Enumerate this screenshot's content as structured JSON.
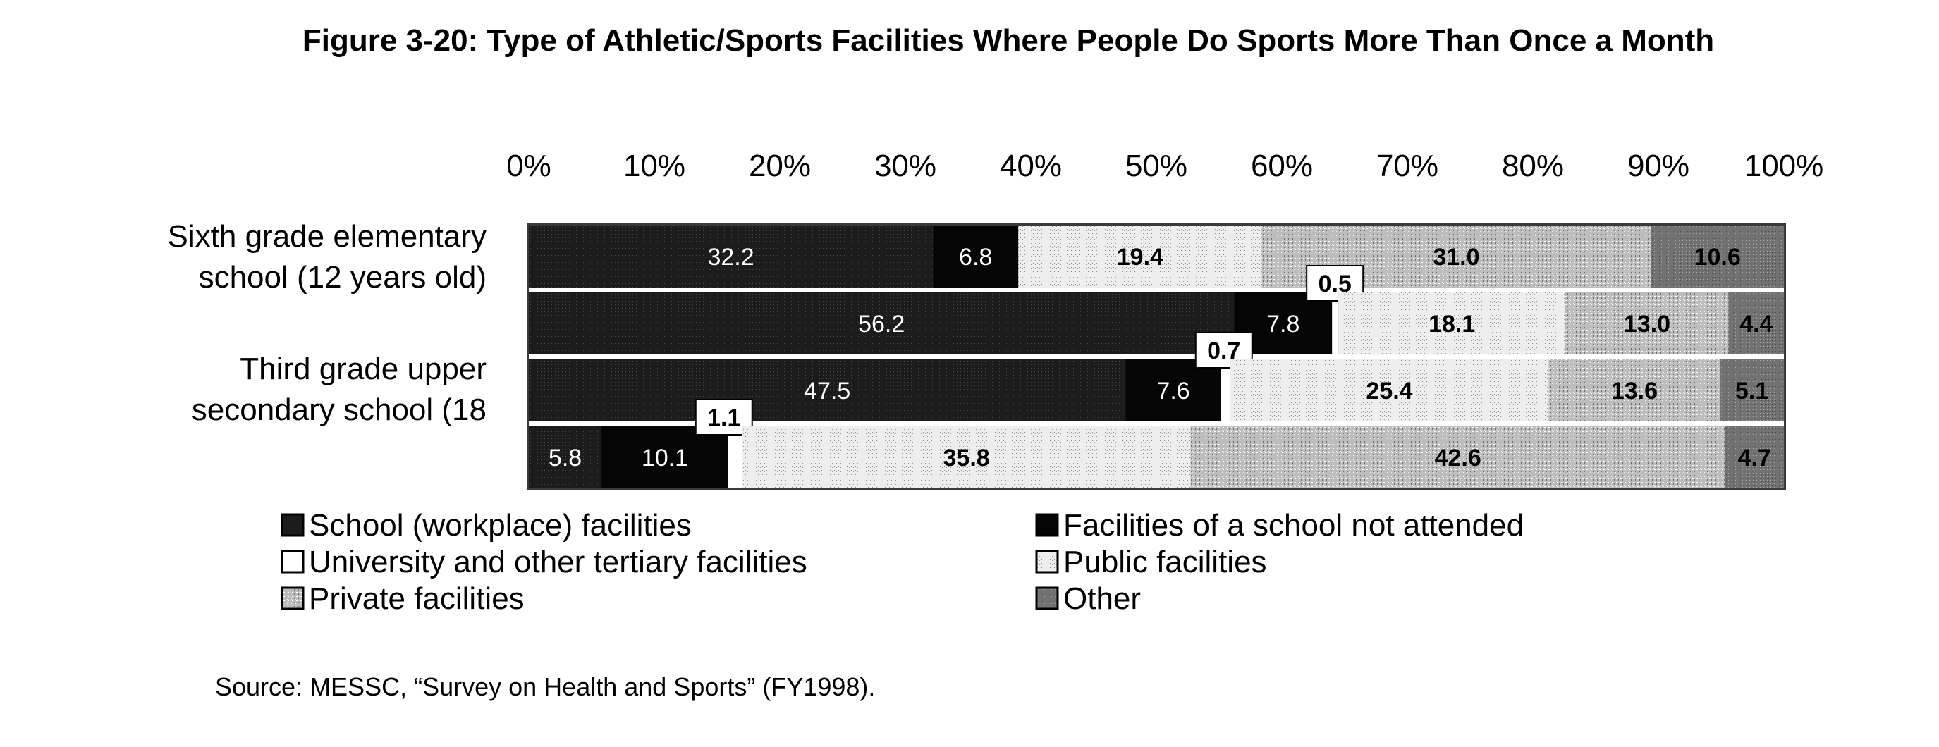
{
  "chart_data": {
    "type": "bar",
    "orientation": "horizontal",
    "stacked": "100%",
    "title": "Figure 3-20: Type of Athletic/Sports Facilities Where People Do Sports More Than Once a Month",
    "source": "Source: MESSC, “Survey on Health and Sports” (FY1998).",
    "x_ticks": [
      "0%",
      "10%",
      "20%",
      "30%",
      "40%",
      "50%",
      "60%",
      "70%",
      "80%",
      "90%",
      "100%"
    ],
    "xlim": [
      0,
      100
    ],
    "category_labels": [
      [
        "Sixth grade elementary",
        "school (12 years old)"
      ],
      [
        "Third grade upper",
        "secondary school (18"
      ]
    ],
    "legend_placement": "bottom",
    "series": [
      {
        "name": "School (workplace) facilities",
        "color": "#232323"
      },
      {
        "name": "Facilities of a school not attended",
        "color": "#0b0b0b"
      },
      {
        "name": "University and other tertiary facilities",
        "color": "#ffffff"
      },
      {
        "name": "Public facilities",
        "color": "#e8e8e8"
      },
      {
        "name": "Private facilities",
        "color": "#b9b9b9"
      },
      {
        "name": "Other",
        "color": "#7a7a7a"
      }
    ],
    "bars": [
      {
        "category": 0,
        "values": [
          32.2,
          6.8,
          null,
          19.4,
          31.0,
          10.6
        ],
        "labels": [
          "32.2",
          "6.8",
          "",
          "19.4",
          "31.0",
          "10.6"
        ]
      },
      {
        "category": 0,
        "values": [
          56.2,
          7.8,
          0.5,
          18.1,
          13.0,
          4.4
        ],
        "labels": [
          "56.2",
          "7.8",
          "0.5",
          "18.1",
          "13.0",
          "4.4"
        ]
      },
      {
        "category": 1,
        "values": [
          47.5,
          7.6,
          0.7,
          25.4,
          13.6,
          5.1
        ],
        "labels": [
          "47.5",
          "7.6",
          "0.7",
          "25.4",
          "13.6",
          "5.1"
        ]
      },
      {
        "category": 1,
        "values": [
          5.8,
          10.1,
          1.1,
          35.8,
          42.6,
          4.7
        ],
        "labels": [
          "5.8",
          "10.1",
          "1.1",
          "35.8",
          "42.6",
          "4.7"
        ]
      }
    ]
  }
}
